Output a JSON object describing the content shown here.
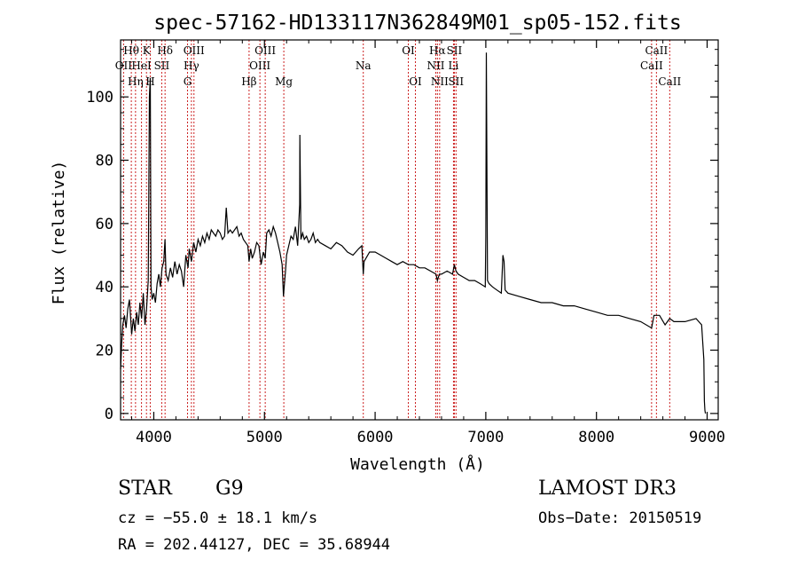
{
  "chart_data": {
    "type": "line",
    "title": "spec-57162-HD133117N362849M01_sp05-152.fits",
    "xlabel": "Wavelength (Å)",
    "ylabel": "Flux (relative)",
    "xlim": [
      3700,
      9100
    ],
    "ylim": [
      -2,
      118
    ],
    "xticks": [
      4000,
      5000,
      6000,
      7000,
      8000,
      9000
    ],
    "yticks": [
      0,
      20,
      40,
      60,
      80,
      100
    ],
    "grid": false,
    "series": [
      {
        "name": "spectrum",
        "x": [
          3700,
          3710,
          3720,
          3735,
          3750,
          3765,
          3780,
          3800,
          3815,
          3830,
          3845,
          3860,
          3875,
          3890,
          3905,
          3920,
          3935,
          3950,
          3960,
          3968,
          3975,
          3985,
          4000,
          4015,
          4030,
          4045,
          4060,
          4075,
          4090,
          4101,
          4110,
          4130,
          4150,
          4170,
          4190,
          4210,
          4230,
          4250,
          4270,
          4290,
          4310,
          4320,
          4340,
          4360,
          4380,
          4400,
          4420,
          4440,
          4460,
          4480,
          4500,
          4520,
          4540,
          4560,
          4580,
          4600,
          4620,
          4640,
          4655,
          4670,
          4690,
          4710,
          4730,
          4750,
          4770,
          4790,
          4810,
          4830,
          4850,
          4861,
          4875,
          4890,
          4910,
          4930,
          4950,
          4970,
          4990,
          5007,
          5020,
          5040,
          5060,
          5080,
          5100,
          5120,
          5140,
          5160,
          5172,
          5183,
          5190,
          5200,
          5220,
          5240,
          5260,
          5280,
          5300,
          5318,
          5320,
          5330,
          5345,
          5360,
          5380,
          5400,
          5420,
          5440,
          5460,
          5480,
          5500,
          5550,
          5600,
          5650,
          5700,
          5750,
          5800,
          5850,
          5880,
          5893,
          5900,
          5950,
          6000,
          6050,
          6100,
          6150,
          6200,
          6250,
          6300,
          6350,
          6400,
          6450,
          6500,
          6550,
          6563,
          6580,
          6600,
          6650,
          6700,
          6716,
          6731,
          6750,
          6800,
          6850,
          6900,
          6950,
          6995,
          7000,
          7005,
          7015,
          7030,
          7060,
          7100,
          7140,
          7155,
          7165,
          7175,
          7200,
          7300,
          7400,
          7500,
          7600,
          7700,
          7800,
          7900,
          8000,
          8100,
          8200,
          8300,
          8400,
          8498,
          8520,
          8542,
          8570,
          8620,
          8662,
          8700,
          8800,
          8900,
          8950,
          8970,
          8975,
          8980,
          8985
        ],
        "y": [
          14,
          22,
          28,
          31,
          27,
          33,
          36,
          25,
          30,
          26,
          32,
          28,
          35,
          30,
          38,
          28,
          33,
          42,
          100,
          106,
          40,
          36,
          38,
          35,
          41,
          44,
          40,
          46,
          48,
          55,
          44,
          42,
          46,
          43,
          48,
          44,
          47,
          45,
          40,
          50,
          46,
          52,
          48,
          54,
          51,
          55,
          53,
          56,
          54,
          57,
          55,
          58,
          57,
          56,
          58,
          57,
          55,
          56,
          65,
          57,
          58,
          57,
          58,
          59,
          56,
          57,
          55,
          54,
          53,
          48,
          52,
          49,
          51,
          54,
          53,
          47,
          51,
          49,
          57,
          58,
          56,
          59,
          57,
          54,
          51,
          47,
          37,
          42,
          45,
          50,
          53,
          56,
          55,
          59,
          53,
          66,
          88,
          55,
          57,
          55,
          56,
          54,
          55,
          57,
          54,
          55,
          54,
          53,
          52,
          54,
          53,
          51,
          50,
          52,
          53,
          44,
          48,
          51,
          51,
          50,
          49,
          48,
          47,
          48,
          47,
          47,
          46,
          46,
          45,
          44,
          42,
          44,
          44,
          45,
          44,
          47,
          45,
          44,
          43,
          42,
          42,
          41,
          40,
          56,
          114,
          42,
          41,
          40,
          39,
          38,
          50,
          48,
          39,
          38,
          37,
          36,
          35,
          35,
          34,
          34,
          33,
          32,
          31,
          31,
          30,
          29,
          27,
          31,
          31,
          31,
          28,
          30,
          29,
          29,
          30,
          28,
          17,
          4,
          1,
          0
        ]
      }
    ],
    "lines": [
      {
        "name": "OII",
        "wavelength": 3727,
        "row": 2
      },
      {
        "name": "Hθ",
        "wavelength": 3797,
        "row": 1
      },
      {
        "name": "Hη",
        "wavelength": 3835,
        "row": 3
      },
      {
        "name": "HeI",
        "wavelength": 3889,
        "row": 2
      },
      {
        "name": "K",
        "wavelength": 3934,
        "row": 1
      },
      {
        "name": "H",
        "wavelength": 3968,
        "row": 3
      },
      {
        "name": "Hδ",
        "wavelength": 4102,
        "row": 1
      },
      {
        "name": "SII",
        "wavelength": 4072,
        "row": 2
      },
      {
        "name": "OIII",
        "wavelength": 4363,
        "row": 1
      },
      {
        "name": "Hγ",
        "wavelength": 4340,
        "row": 2
      },
      {
        "name": "G",
        "wavelength": 4305,
        "row": 3
      },
      {
        "name": "Hβ",
        "wavelength": 4861,
        "row": 3
      },
      {
        "name": "OIII",
        "wavelength": 5007,
        "row": 1
      },
      {
        "name": "OIII",
        "wavelength": 4959,
        "row": 2
      },
      {
        "name": "Mg",
        "wavelength": 5175,
        "row": 3
      },
      {
        "name": "Na",
        "wavelength": 5893,
        "row": 2
      },
      {
        "name": "OI",
        "wavelength": 6300,
        "row": 1
      },
      {
        "name": "OI",
        "wavelength": 6364,
        "row": 3
      },
      {
        "name": "Hα",
        "wavelength": 6563,
        "row": 1
      },
      {
        "name": "SII",
        "wavelength": 6716,
        "row": 1
      },
      {
        "name": "NII",
        "wavelength": 6548,
        "row": 2
      },
      {
        "name": "Li",
        "wavelength": 6708,
        "row": 2
      },
      {
        "name": "NII",
        "wavelength": 6583,
        "row": 3
      },
      {
        "name": "SII",
        "wavelength": 6731,
        "row": 3
      },
      {
        "name": "CaII",
        "wavelength": 8542,
        "row": 1
      },
      {
        "name": "CaII",
        "wavelength": 8498,
        "row": 2
      },
      {
        "name": "CaII",
        "wavelength": 8662,
        "row": 3
      }
    ]
  },
  "info": {
    "object_type": "STAR",
    "subclass": "G9",
    "survey": "LAMOST DR3",
    "redshift": "cz = −55.0 ± 18.1 km/s",
    "obs_date": "Obs−Date: 20150519",
    "coords": "RA = 202.44127, DEC =  35.68944"
  },
  "colors": {
    "spectrum": "#000000",
    "line_marker": "#cc2222",
    "axes": "#000000"
  }
}
